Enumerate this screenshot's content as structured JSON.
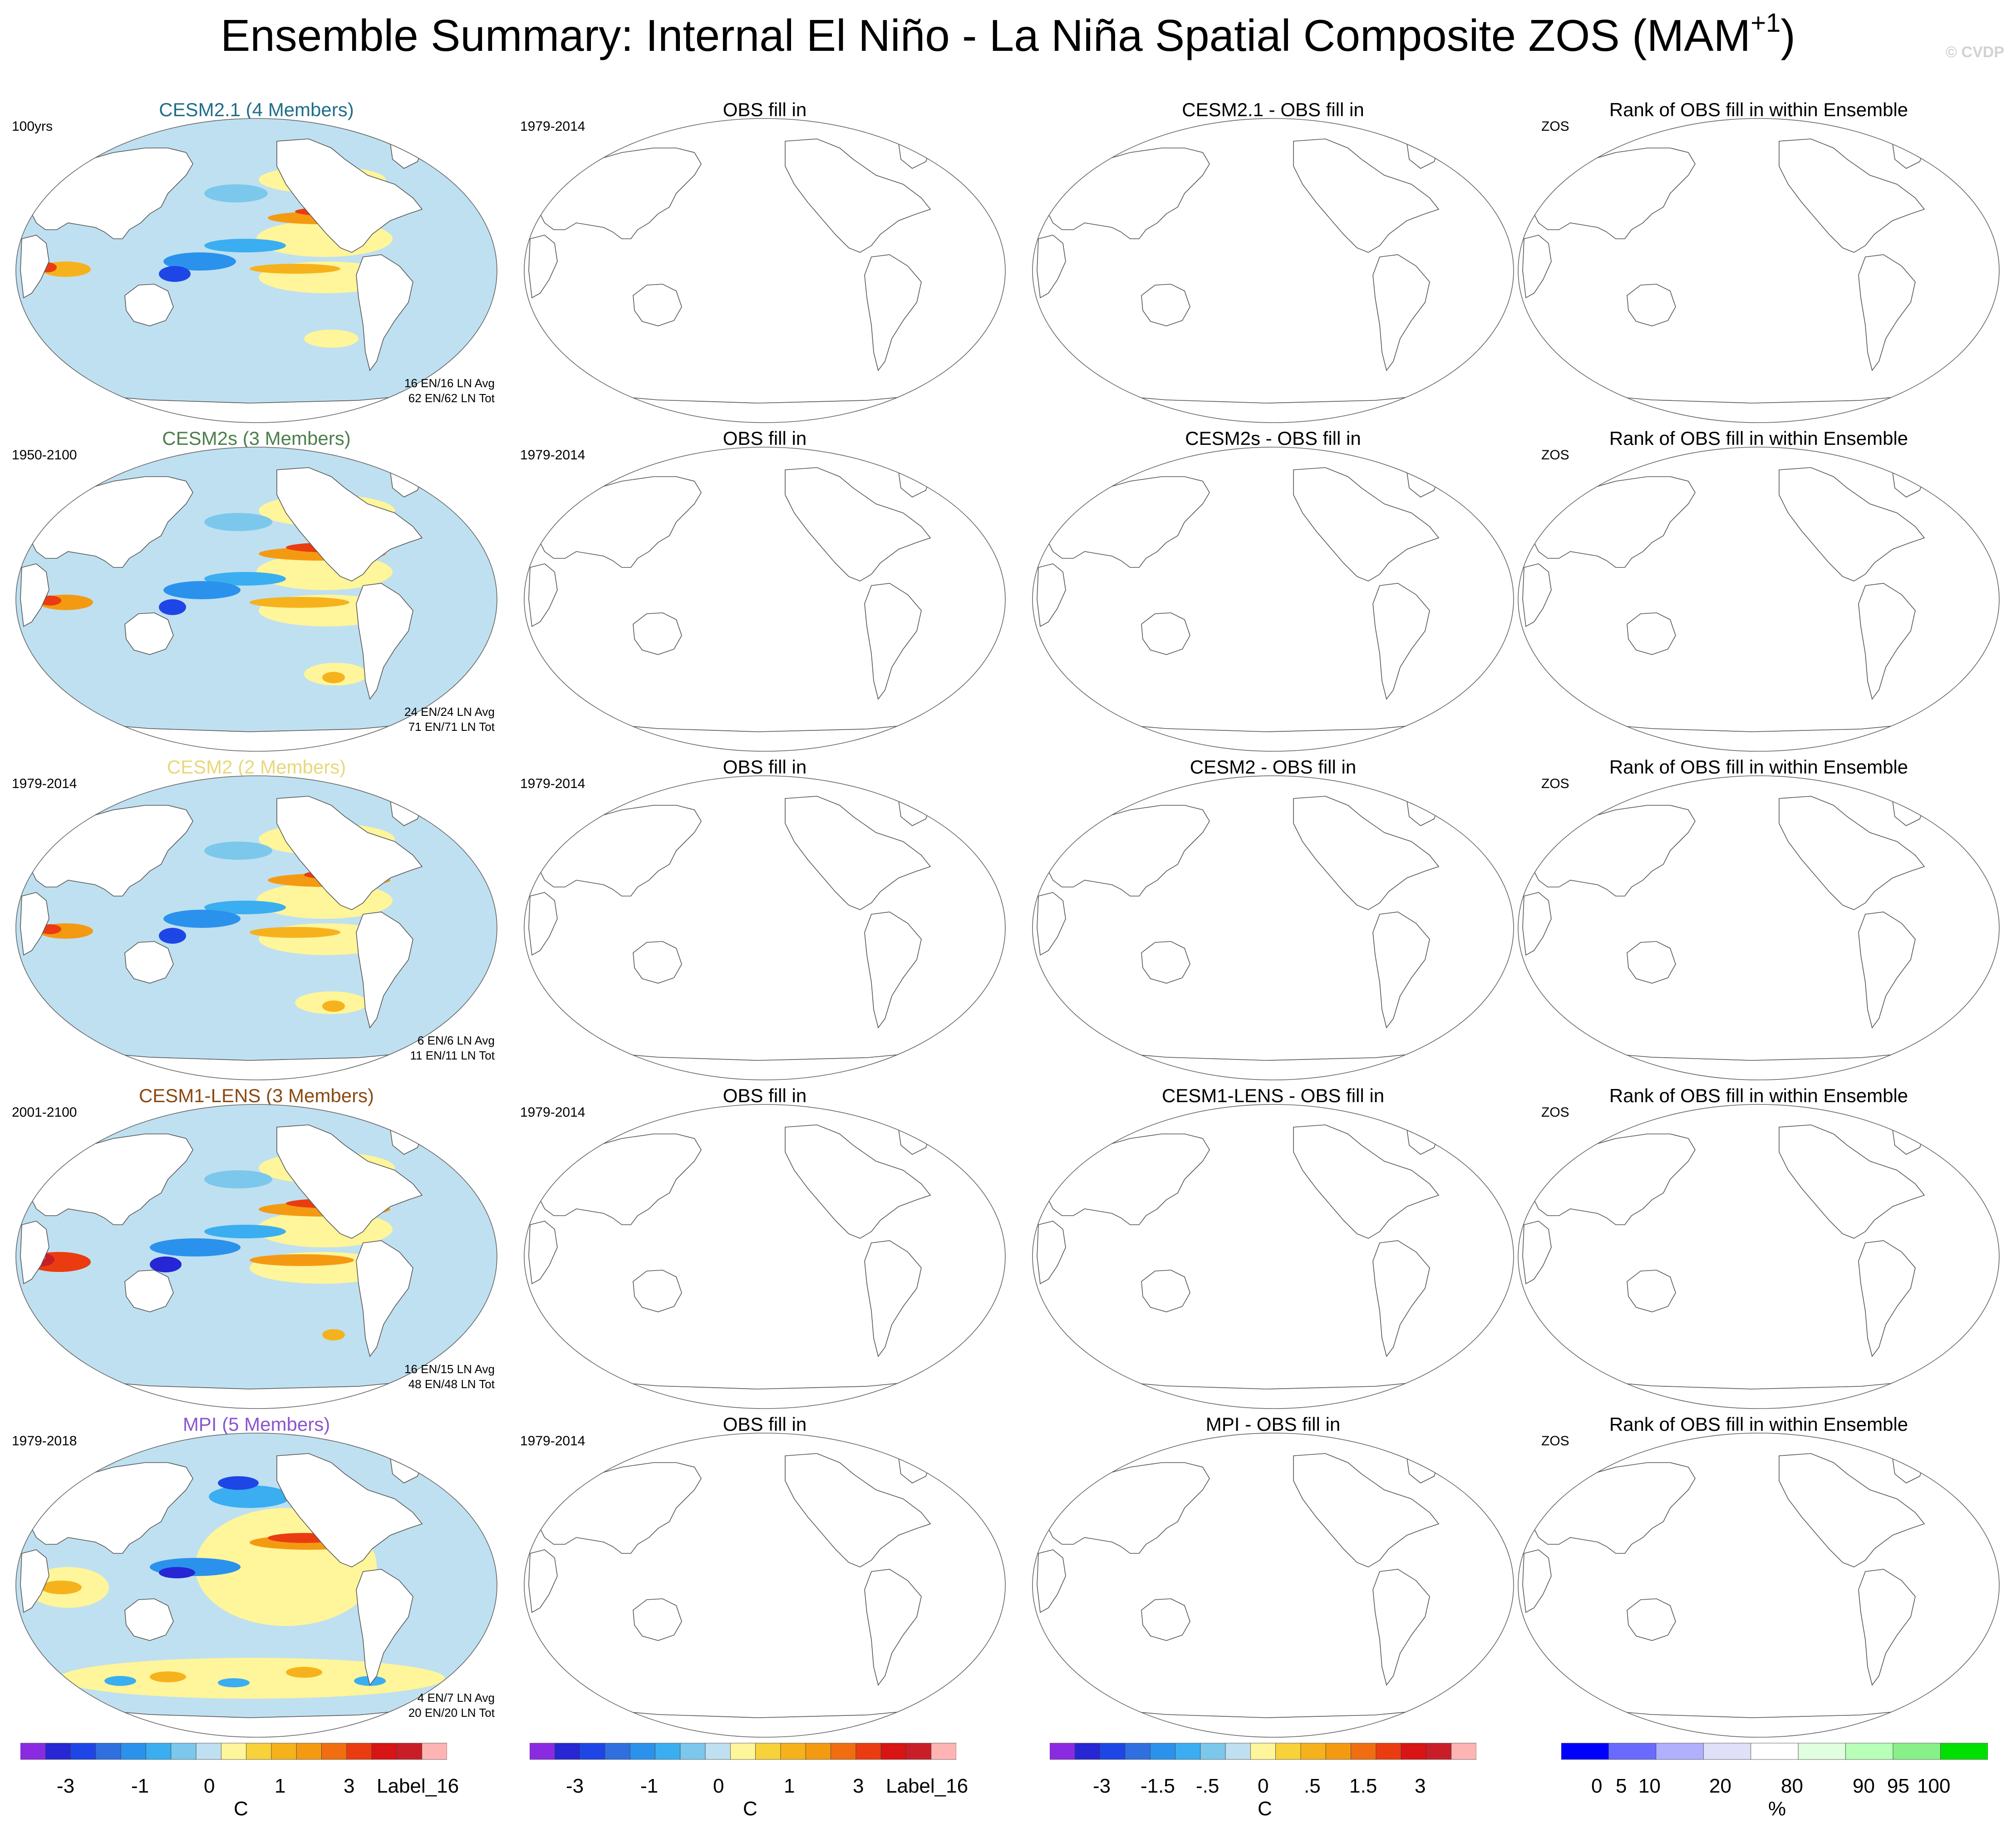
{
  "title_main": "Ensemble Summary: Internal El Niño - La Niña Spatial Composite ZOS (MAM",
  "title_sup": "+1",
  "title_close": ")",
  "copyright": "© CVDP",
  "colors": {
    "cesm21": "#1f6e8a",
    "cesm2s": "#4c7f4c",
    "cesm2": "#e8d87a",
    "cesm1lens": "#8a4a12",
    "mpi": "#8a56cf",
    "ocean_neutral": "#bfe0f0",
    "land": "#ffffff"
  },
  "rows": [
    {
      "ensemble": {
        "title": "CESM2.1 (4 Members)",
        "period": "100yrs",
        "stats1": "16 EN/16 LN Avg",
        "stats2": "62 EN/62 LN Tot"
      },
      "obs": {
        "title": "OBS fill in",
        "period": "1979-2014"
      },
      "diff": {
        "title": "CESM2.1 - OBS fill in"
      },
      "rank": {
        "title": "Rank of OBS fill in within Ensemble",
        "label": "ZOS"
      }
    },
    {
      "ensemble": {
        "title": "CESM2s (3 Members)",
        "period": "1950-2100",
        "stats1": "24 EN/24 LN Avg",
        "stats2": "71 EN/71 LN Tot"
      },
      "obs": {
        "title": "OBS fill in",
        "period": "1979-2014"
      },
      "diff": {
        "title": "CESM2s - OBS fill in"
      },
      "rank": {
        "title": "Rank of OBS fill in within Ensemble",
        "label": "ZOS"
      }
    },
    {
      "ensemble": {
        "title": "CESM2 (2 Members)",
        "period": "1979-2014",
        "stats1": "6 EN/6 LN Avg",
        "stats2": "11 EN/11 LN Tot"
      },
      "obs": {
        "title": "OBS fill in",
        "period": "1979-2014"
      },
      "diff": {
        "title": "CESM2 - OBS fill in"
      },
      "rank": {
        "title": "Rank of OBS fill in within Ensemble",
        "label": "ZOS"
      }
    },
    {
      "ensemble": {
        "title": "CESM1-LENS (3 Members)",
        "period": "2001-2100",
        "stats1": "16 EN/15 LN Avg",
        "stats2": "48 EN/48 LN Tot"
      },
      "obs": {
        "title": "OBS fill in",
        "period": "1979-2014"
      },
      "diff": {
        "title": "CESM1-LENS - OBS fill in"
      },
      "rank": {
        "title": "Rank of OBS fill in within Ensemble",
        "label": "ZOS"
      }
    },
    {
      "ensemble": {
        "title": "MPI (5 Members)",
        "period": "1979-2018",
        "stats1": "4 EN/7 LN Avg",
        "stats2": "20 EN/20 LN Tot"
      },
      "obs": {
        "title": "OBS fill in",
        "period": "1979-2014"
      },
      "diff": {
        "title": "MPI - OBS fill in"
      },
      "rank": {
        "title": "Rank of OBS fill in within Ensemble",
        "label": "ZOS"
      }
    }
  ],
  "colorbars": {
    "composite": {
      "colors": [
        "#8a2be2",
        "#2626d4",
        "#1e46e6",
        "#2f6fe0",
        "#2a92ec",
        "#3aaef0",
        "#7cc8ec",
        "#bfe0f0",
        "#fff59a",
        "#f8d23a",
        "#f6b21c",
        "#f49a12",
        "#f06e10",
        "#ea3c10",
        "#d81414",
        "#c81e28",
        "#ffb4b4"
      ],
      "ticks": [
        "-3",
        "-1",
        "0",
        "1",
        "3",
        "Label_16"
      ],
      "unit": "C"
    },
    "difference": {
      "colors": [
        "#8a2be2",
        "#2626d4",
        "#1e46e6",
        "#2f6fe0",
        "#2a92ec",
        "#3aaef0",
        "#7cc8ec",
        "#bfe0f0",
        "#fff59a",
        "#f8d23a",
        "#f6b21c",
        "#f49a12",
        "#f06e10",
        "#ea3c10",
        "#d81414",
        "#c81e28",
        "#ffb4b4"
      ],
      "ticks": [
        "-3",
        "-1.5",
        "-.5",
        "0",
        ".5",
        "1.5",
        "3"
      ],
      "unit": "C"
    },
    "rank": {
      "colors": [
        "#0000ff",
        "#6a6aff",
        "#b0b0ff",
        "#e0e0f8",
        "#ffffff",
        "#e0ffe0",
        "#b8ffb8",
        "#88f088",
        "#00e000"
      ],
      "ticks": [
        "0",
        "5",
        "10",
        "20",
        "80",
        "90",
        "95",
        "100"
      ],
      "unit": "%"
    }
  }
}
